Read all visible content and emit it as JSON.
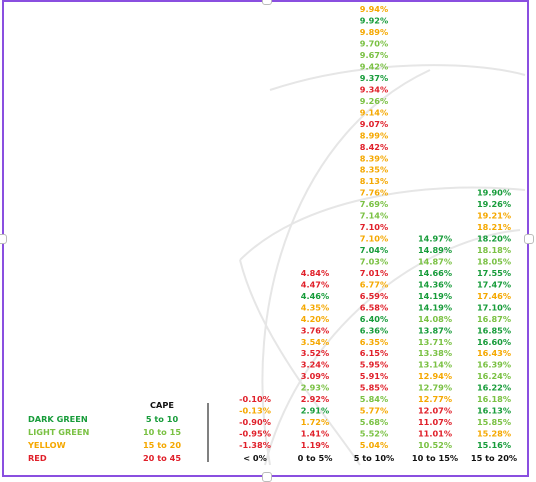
{
  "chart_data": {
    "type": "table",
    "colors": {
      "dark_green": "#179c3a",
      "light_green": "#7ac143",
      "yellow": "#f5a800",
      "red": "#e0202a"
    },
    "legend": {
      "header": "CAPE",
      "entries": [
        {
          "label": "DARK GREEN",
          "range": "5 to 10",
          "color": "dark_green"
        },
        {
          "label": "LIGHT GREEN",
          "range": "10 to 15",
          "color": "light_green"
        },
        {
          "label": "YELLOW",
          "range": "15 to 20",
          "color": "yellow"
        },
        {
          "label": "RED",
          "range": "20 to 45",
          "color": "red"
        }
      ]
    },
    "columns": [
      {
        "label": "< 0%",
        "values": [
          {
            "v": "-0.10%",
            "c": "red"
          },
          {
            "v": "-0.13%",
            "c": "yellow"
          },
          {
            "v": "-0.90%",
            "c": "red"
          },
          {
            "v": "-0.95%",
            "c": "red"
          },
          {
            "v": "-1.38%",
            "c": "red"
          }
        ]
      },
      {
        "label": "0 to 5%",
        "values": [
          {
            "v": "4.84%",
            "c": "red"
          },
          {
            "v": "4.47%",
            "c": "red"
          },
          {
            "v": "4.46%",
            "c": "dark_green"
          },
          {
            "v": "4.35%",
            "c": "yellow"
          },
          {
            "v": "4.20%",
            "c": "yellow"
          },
          {
            "v": "3.76%",
            "c": "red"
          },
          {
            "v": "3.54%",
            "c": "yellow"
          },
          {
            "v": "3.52%",
            "c": "red"
          },
          {
            "v": "3.24%",
            "c": "red"
          },
          {
            "v": "3.09%",
            "c": "red"
          },
          {
            "v": "2.93%",
            "c": "light_green"
          },
          {
            "v": "2.92%",
            "c": "red"
          },
          {
            "v": "2.91%",
            "c": "dark_green"
          },
          {
            "v": "1.72%",
            "c": "yellow"
          },
          {
            "v": "1.41%",
            "c": "red"
          },
          {
            "v": "1.19%",
            "c": "red"
          }
        ]
      },
      {
        "label": "5 to 10%",
        "values": [
          {
            "v": "9.94%",
            "c": "yellow"
          },
          {
            "v": "9.92%",
            "c": "dark_green"
          },
          {
            "v": "9.89%",
            "c": "yellow"
          },
          {
            "v": "9.70%",
            "c": "light_green"
          },
          {
            "v": "9.67%",
            "c": "light_green"
          },
          {
            "v": "9.42%",
            "c": "light_green"
          },
          {
            "v": "9.37%",
            "c": "dark_green"
          },
          {
            "v": "9.34%",
            "c": "red"
          },
          {
            "v": "9.26%",
            "c": "light_green"
          },
          {
            "v": "9.14%",
            "c": "yellow"
          },
          {
            "v": "9.07%",
            "c": "red"
          },
          {
            "v": "8.99%",
            "c": "yellow"
          },
          {
            "v": "8.42%",
            "c": "red"
          },
          {
            "v": "8.39%",
            "c": "yellow"
          },
          {
            "v": "8.35%",
            "c": "yellow"
          },
          {
            "v": "8.13%",
            "c": "yellow"
          },
          {
            "v": "7.76%",
            "c": "yellow"
          },
          {
            "v": "7.69%",
            "c": "light_green"
          },
          {
            "v": "7.14%",
            "c": "light_green"
          },
          {
            "v": "7.10%",
            "c": "red"
          },
          {
            "v": "7.10%",
            "c": "yellow"
          },
          {
            "v": "7.04%",
            "c": "dark_green"
          },
          {
            "v": "7.03%",
            "c": "light_green"
          },
          {
            "v": "7.01%",
            "c": "red"
          },
          {
            "v": "6.77%",
            "c": "yellow"
          },
          {
            "v": "6.59%",
            "c": "red"
          },
          {
            "v": "6.58%",
            "c": "red"
          },
          {
            "v": "6.40%",
            "c": "dark_green"
          },
          {
            "v": "6.36%",
            "c": "dark_green"
          },
          {
            "v": "6.35%",
            "c": "yellow"
          },
          {
            "v": "6.15%",
            "c": "red"
          },
          {
            "v": "5.95%",
            "c": "red"
          },
          {
            "v": "5.91%",
            "c": "red"
          },
          {
            "v": "5.85%",
            "c": "red"
          },
          {
            "v": "5.84%",
            "c": "light_green"
          },
          {
            "v": "5.77%",
            "c": "yellow"
          },
          {
            "v": "5.68%",
            "c": "light_green"
          },
          {
            "v": "5.52%",
            "c": "light_green"
          },
          {
            "v": "5.04%",
            "c": "yellow"
          }
        ]
      },
      {
        "label": "10 to 15%",
        "values": [
          {
            "v": "14.97%",
            "c": "dark_green"
          },
          {
            "v": "14.89%",
            "c": "dark_green"
          },
          {
            "v": "14.87%",
            "c": "light_green"
          },
          {
            "v": "14.66%",
            "c": "dark_green"
          },
          {
            "v": "14.36%",
            "c": "dark_green"
          },
          {
            "v": "14.19%",
            "c": "dark_green"
          },
          {
            "v": "14.19%",
            "c": "dark_green"
          },
          {
            "v": "14.08%",
            "c": "light_green"
          },
          {
            "v": "13.87%",
            "c": "dark_green"
          },
          {
            "v": "13.71%",
            "c": "light_green"
          },
          {
            "v": "13.38%",
            "c": "light_green"
          },
          {
            "v": "13.14%",
            "c": "light_green"
          },
          {
            "v": "12.94%",
            "c": "yellow"
          },
          {
            "v": "12.79%",
            "c": "light_green"
          },
          {
            "v": "12.77%",
            "c": "yellow"
          },
          {
            "v": "12.07%",
            "c": "red"
          },
          {
            "v": "11.07%",
            "c": "red"
          },
          {
            "v": "11.01%",
            "c": "red"
          },
          {
            "v": "10.52%",
            "c": "light_green"
          }
        ]
      },
      {
        "label": "15 to 20%",
        "values": [
          {
            "v": "19.90%",
            "c": "dark_green"
          },
          {
            "v": "19.26%",
            "c": "dark_green"
          },
          {
            "v": "19.21%",
            "c": "yellow"
          },
          {
            "v": "18.21%",
            "c": "yellow"
          },
          {
            "v": "18.20%",
            "c": "dark_green"
          },
          {
            "v": "18.18%",
            "c": "light_green"
          },
          {
            "v": "18.05%",
            "c": "light_green"
          },
          {
            "v": "17.55%",
            "c": "dark_green"
          },
          {
            "v": "17.47%",
            "c": "dark_green"
          },
          {
            "v": "17.46%",
            "c": "yellow"
          },
          {
            "v": "17.10%",
            "c": "dark_green"
          },
          {
            "v": "16.87%",
            "c": "light_green"
          },
          {
            "v": "16.85%",
            "c": "dark_green"
          },
          {
            "v": "16.60%",
            "c": "dark_green"
          },
          {
            "v": "16.43%",
            "c": "yellow"
          },
          {
            "v": "16.39%",
            "c": "light_green"
          },
          {
            "v": "16.24%",
            "c": "light_green"
          },
          {
            "v": "16.22%",
            "c": "dark_green"
          },
          {
            "v": "16.18%",
            "c": "light_green"
          },
          {
            "v": "16.13%",
            "c": "dark_green"
          },
          {
            "v": "15.85%",
            "c": "light_green"
          },
          {
            "v": "15.28%",
            "c": "yellow"
          },
          {
            "v": "15.16%",
            "c": "dark_green"
          }
        ]
      }
    ]
  }
}
